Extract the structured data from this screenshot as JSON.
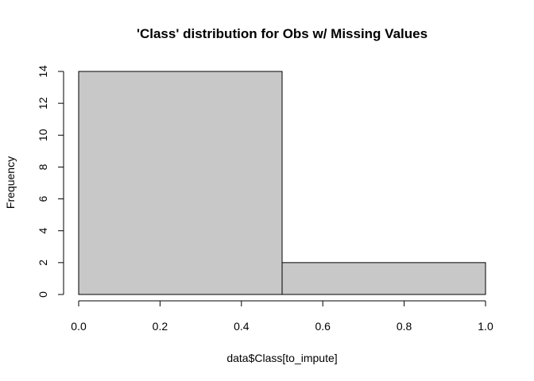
{
  "chart_data": {
    "type": "bar",
    "title": "'Class' distribution for Obs w/ Missing Values",
    "xlabel": "data$Class[to_impute]",
    "ylabel": "Frequency",
    "bins": [
      {
        "x0": 0.0,
        "x1": 0.5,
        "count": 14
      },
      {
        "x0": 0.5,
        "x1": 1.0,
        "count": 2
      }
    ],
    "xlim": [
      0.0,
      1.0
    ],
    "ylim": [
      0,
      14
    ],
    "x_ticks": [
      "0.0",
      "0.2",
      "0.4",
      "0.6",
      "0.8",
      "1.0"
    ],
    "y_ticks": [
      "0",
      "2",
      "4",
      "6",
      "8",
      "10",
      "12",
      "14"
    ],
    "grid": false,
    "legend": "none",
    "colors": {
      "bar_fill": "#c8c8c8",
      "bar_stroke": "#000000"
    }
  }
}
